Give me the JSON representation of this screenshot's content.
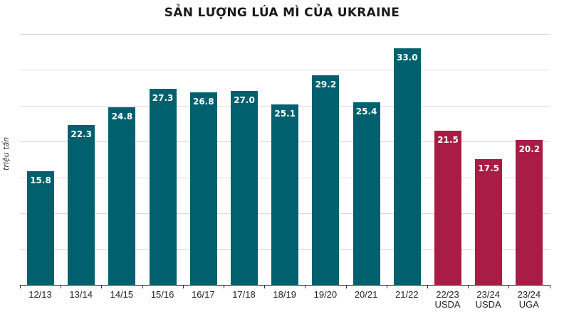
{
  "chart_data": {
    "type": "bar",
    "title": "SẢN LƯỢNG LÚA MÌ CỦA UKRAINE",
    "ylabel": "triệu tấn",
    "xlabel": "",
    "ylim": [
      0,
      35
    ],
    "grid": true,
    "categories": [
      "12/13",
      "13/14",
      "14/15",
      "15/16",
      "16/17",
      "17/18",
      "18/19",
      "19/20",
      "20/21",
      "21/22",
      "22/23 USDA",
      "23/24 USDA",
      "23/24 UGA"
    ],
    "values": [
      15.8,
      22.3,
      24.8,
      27.3,
      26.8,
      27.0,
      25.1,
      29.2,
      25.4,
      33.0,
      21.5,
      17.5,
      20.2
    ],
    "labels": [
      "15.8",
      "22.3",
      "24.8",
      "27.3",
      "26.8",
      "27.0",
      "25.1",
      "29.2",
      "25.4",
      "33.0",
      "21.5",
      "17.5",
      "20.2"
    ],
    "colors": [
      "#00606e",
      "#00606e",
      "#00606e",
      "#00606e",
      "#00606e",
      "#00606e",
      "#00606e",
      "#00606e",
      "#00606e",
      "#00606e",
      "#a81c45",
      "#a81c45",
      "#a81c45"
    ]
  }
}
